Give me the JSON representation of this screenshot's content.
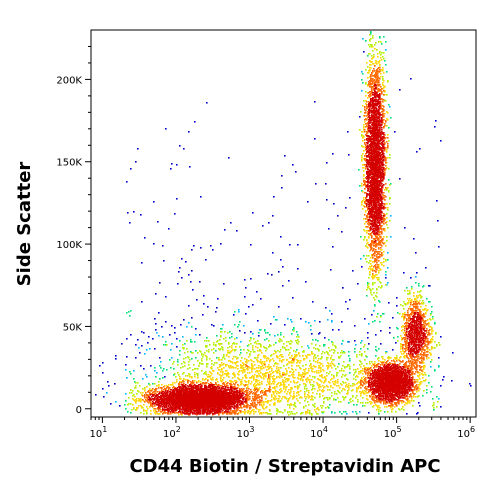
{
  "chart_data": {
    "type": "scatter",
    "subtype": "flow-cytometry-density-dot-plot",
    "xlabel": "CD44 Biotin / Streptavidin APC",
    "ylabel": "Side Scatter",
    "x_scale": "log",
    "xlim": [
      7,
      1200000
    ],
    "ylim": [
      -5000,
      230000
    ],
    "x_ticks": [
      {
        "value": 10,
        "base": "10",
        "exp": "1"
      },
      {
        "value": 100,
        "base": "10",
        "exp": "2"
      },
      {
        "value": 1000,
        "base": "10",
        "exp": "3"
      },
      {
        "value": 10000,
        "base": "10",
        "exp": "4"
      },
      {
        "value": 100000,
        "base": "10",
        "exp": "5"
      },
      {
        "value": 1000000,
        "base": "10",
        "exp": "6"
      }
    ],
    "y_ticks": [
      {
        "value": 0,
        "label": "0"
      },
      {
        "value": 50000,
        "label": "50K"
      },
      {
        "value": 100000,
        "label": "100K"
      },
      {
        "value": 150000,
        "label": "150K"
      },
      {
        "value": 200000,
        "label": "200K"
      }
    ],
    "grid": false,
    "density_colormap": [
      "#0000c8",
      "#00b4ff",
      "#00e07a",
      "#b4f000",
      "#ffd700",
      "#ff6a00",
      "#d40000"
    ],
    "populations": [
      {
        "x_center": 200,
        "x_spread_decades": 0.32,
        "y_center": 6000,
        "y_spread": 4000,
        "weight": 0.34
      },
      {
        "x_center": 50000,
        "x_spread_decades": 0.07,
        "y_center": 150000,
        "y_spread": 32000,
        "weight": 0.26
      },
      {
        "x_center": 80000,
        "x_spread_decades": 0.16,
        "y_center": 16000,
        "y_spread": 6000,
        "weight": 0.18
      },
      {
        "x_center": 180000,
        "x_spread_decades": 0.1,
        "y_center": 45000,
        "y_spread": 12000,
        "weight": 0.08
      },
      {
        "x_center": 2000,
        "x_spread_decades": 0.8,
        "y_center": 20000,
        "y_spread": 14000,
        "weight": 0.14
      }
    ]
  }
}
